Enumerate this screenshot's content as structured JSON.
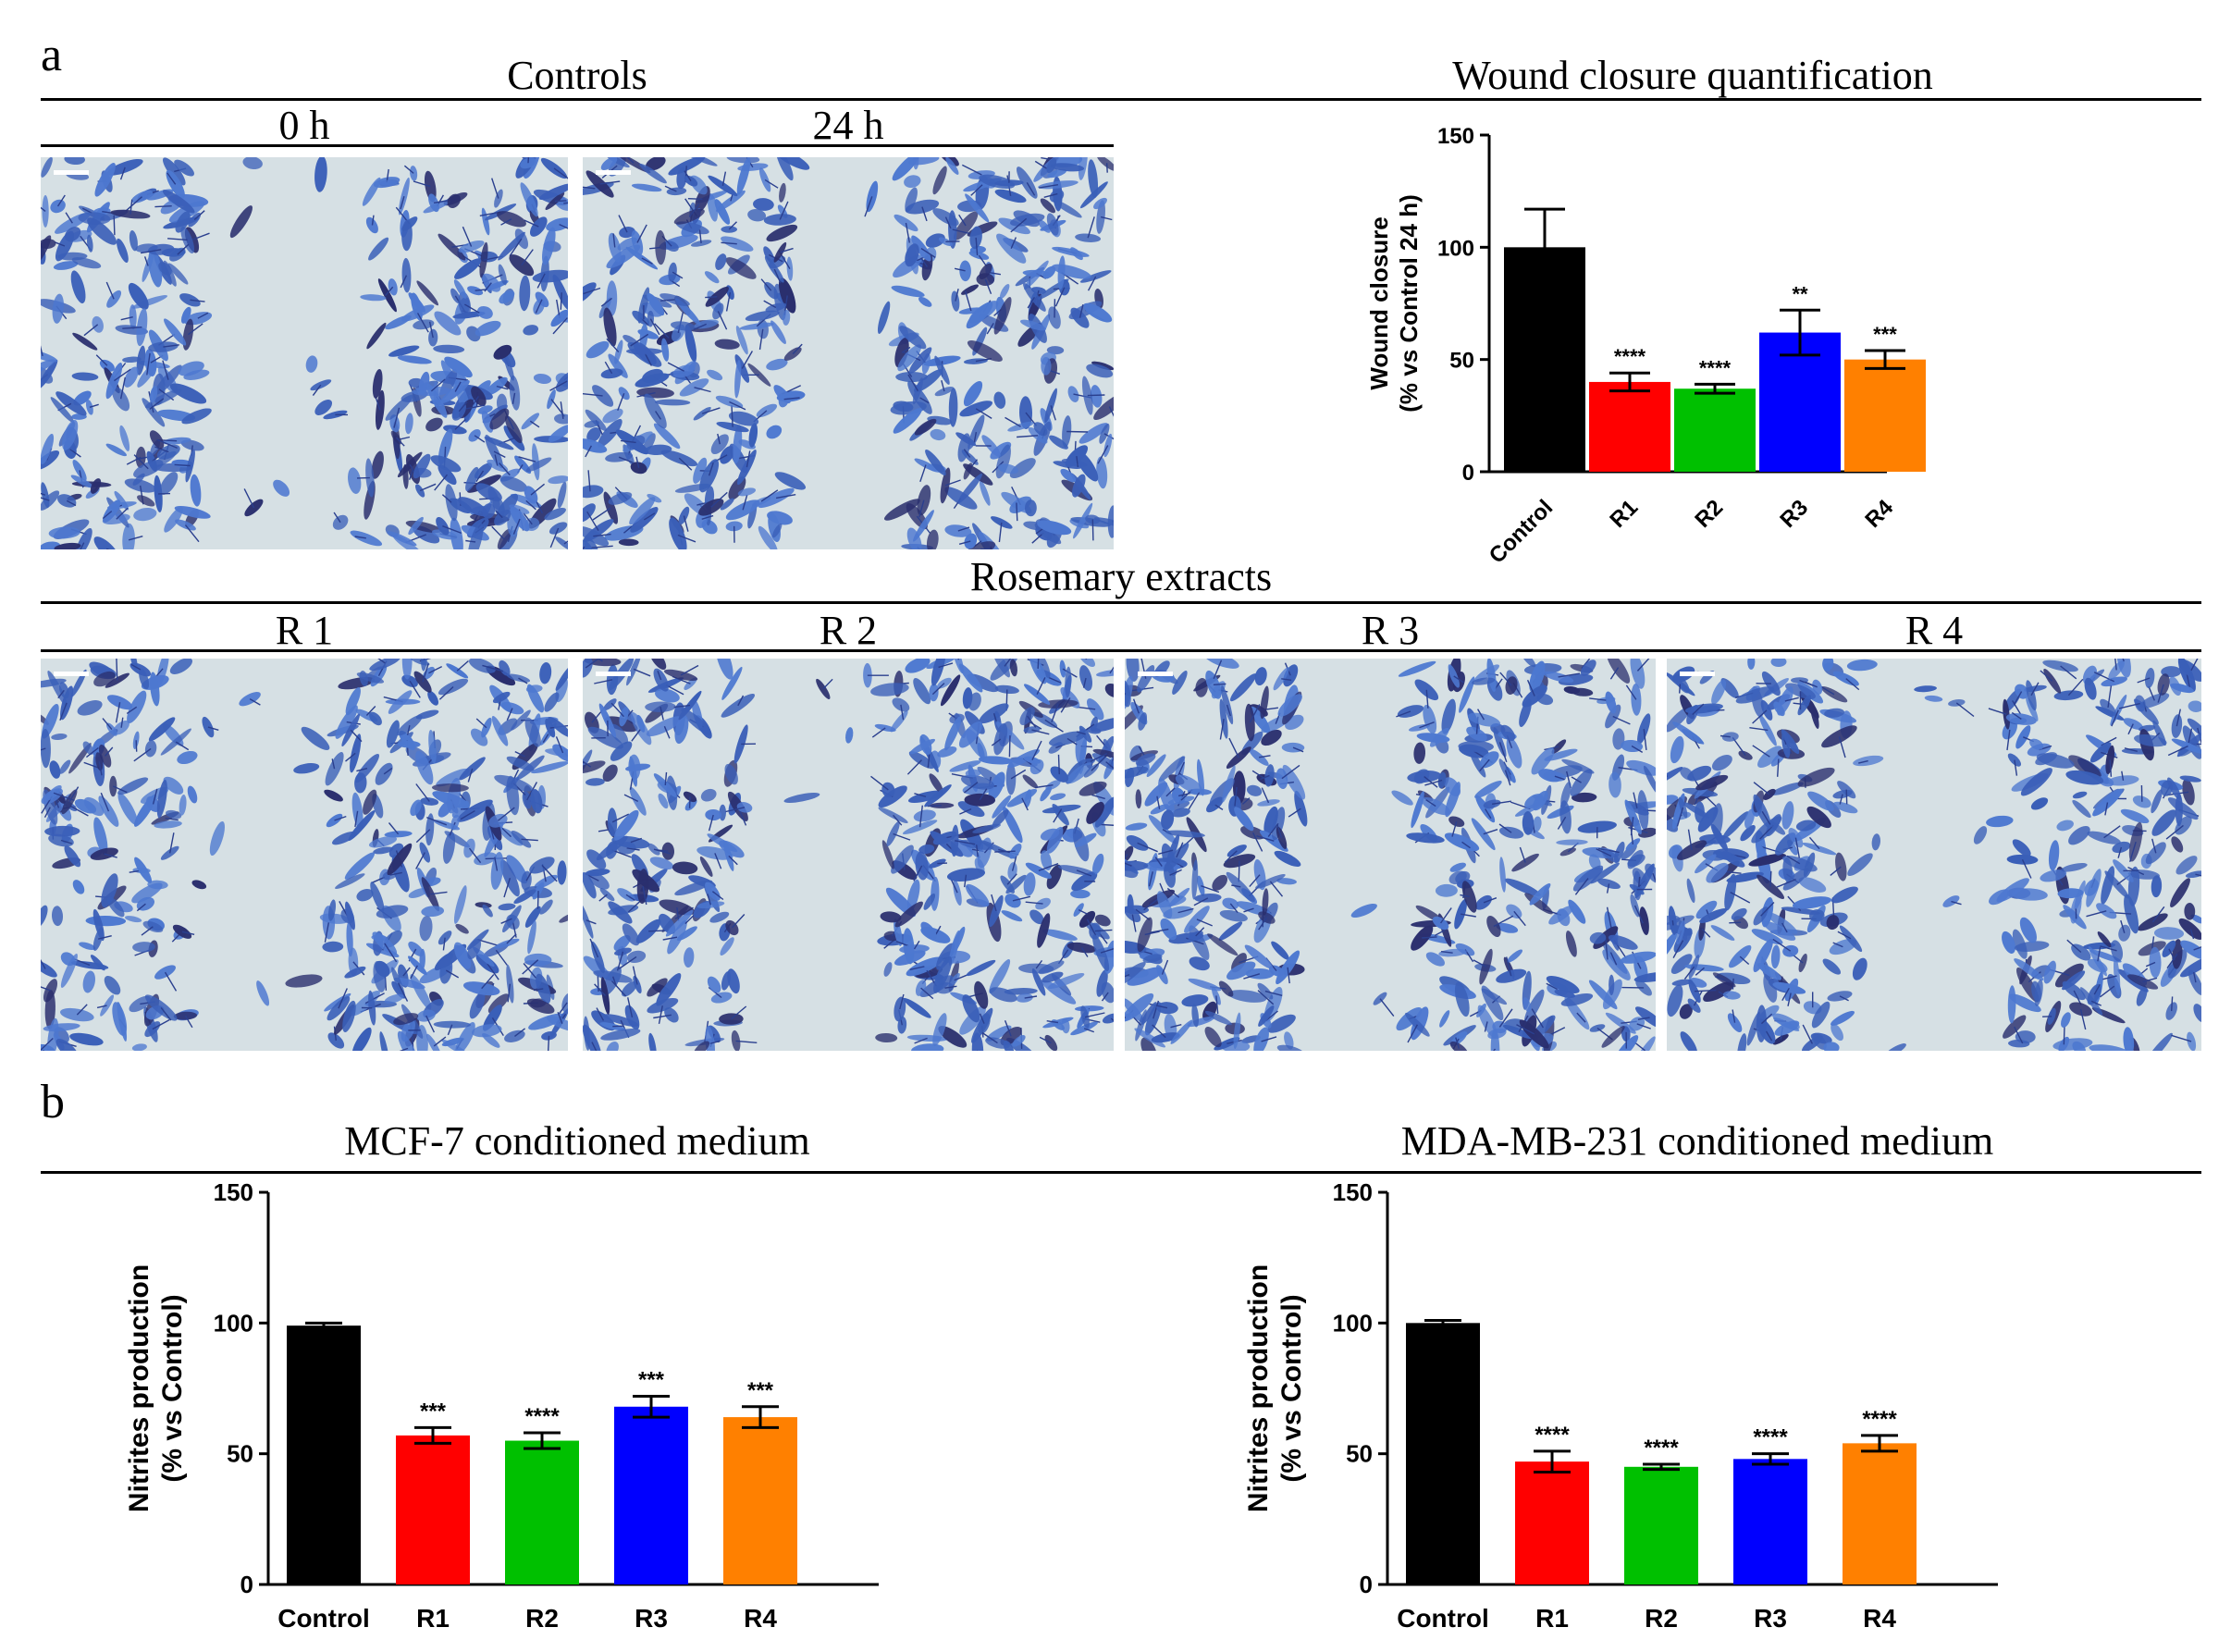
{
  "panel_a": {
    "letter": "a",
    "controls_title": "Controls",
    "time_0": "0 h",
    "time_24": "24 h",
    "rosemary_title": "Rosemary extracts",
    "extract_labels": [
      "R 1",
      "R 2",
      "R 3",
      "R 4"
    ],
    "quant_title": "Wound closure quantification"
  },
  "panel_b": {
    "letter": "b",
    "left_title": "MCF-7 conditioned medium",
    "right_title": "MDA-MB-231 conditioned medium"
  },
  "colors": {
    "control": "#000000",
    "r1": "#ff0000",
    "r2": "#00c000",
    "r3": "#0000ff",
    "r4": "#ff8000",
    "image_bg": "#d6e0e4",
    "cell": "#3a5fb8"
  },
  "chart_data": [
    {
      "id": "wound",
      "type": "bar",
      "title": "Wound closure quantification",
      "ylabel": [
        "Wound closure",
        "(% vs Control 24 h)"
      ],
      "categories": [
        "Control",
        "R1",
        "R2",
        "R3",
        "R4"
      ],
      "values": [
        100,
        40,
        37,
        62,
        50
      ],
      "errors": [
        17,
        4,
        2,
        10,
        4
      ],
      "significance": [
        "",
        "****",
        "****",
        "**",
        "***"
      ],
      "yticks": [
        0,
        50,
        100,
        150
      ],
      "ylim": [
        0,
        150
      ],
      "rotated_labels": true
    },
    {
      "id": "mcf7",
      "type": "bar",
      "title": "MCF-7 conditioned medium",
      "ylabel": [
        "Nitrites production",
        "(% vs Control)"
      ],
      "categories": [
        "Control",
        "R1",
        "R2",
        "R3",
        "R4"
      ],
      "values": [
        99,
        57,
        55,
        68,
        64
      ],
      "errors": [
        1,
        3,
        3,
        4,
        4
      ],
      "significance": [
        "",
        "***",
        "****",
        "***",
        "***"
      ],
      "yticks": [
        0,
        50,
        100,
        150
      ],
      "ylim": [
        0,
        150
      ],
      "rotated_labels": false
    },
    {
      "id": "mda",
      "type": "bar",
      "title": "MDA-MB-231 conditioned medium",
      "ylabel": [
        "Nitrites production",
        "(% vs Control)"
      ],
      "categories": [
        "Control",
        "R1",
        "R2",
        "R3",
        "R4"
      ],
      "values": [
        100,
        47,
        45,
        48,
        54
      ],
      "errors": [
        1,
        4,
        1,
        2,
        3
      ],
      "significance": [
        "",
        "****",
        "****",
        "****",
        "****"
      ],
      "yticks": [
        0,
        50,
        100,
        150
      ],
      "ylim": [
        0,
        150
      ],
      "rotated_labels": false
    }
  ]
}
